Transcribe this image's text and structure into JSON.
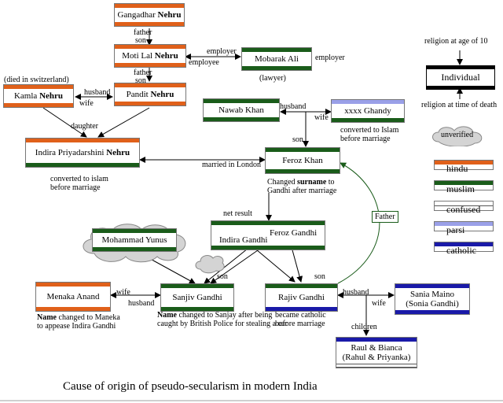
{
  "nodes": {
    "gangadhar": {
      "pre": "Gangadhar ",
      "strong": "Nehru",
      "top": "hindu",
      "bottom": "hindu"
    },
    "motilal": {
      "pre": "Moti Lal ",
      "strong": "Nehru",
      "top": "hindu",
      "bottom": "hindu"
    },
    "mobarak": {
      "pre": "Mobarak Ali",
      "strong": "",
      "top": "muslim",
      "bottom": "muslim"
    },
    "kamla": {
      "pre": "Kamla ",
      "strong": "Nehru",
      "top": "hindu",
      "bottom": "hindu"
    },
    "pandit": {
      "pre": "Pandit ",
      "strong": "Nehru",
      "top": "hindu",
      "bottom": "hindu"
    },
    "indira_p": {
      "pre": "Indira Priyadarshini ",
      "strong": "Nehru",
      "top": "hindu",
      "bottom": "muslim"
    },
    "nawab": {
      "pre": "Nawab Khan",
      "strong": "",
      "top": "muslim",
      "bottom": "muslim"
    },
    "ghandy": {
      "pre": "xxxx Ghandy",
      "strong": "",
      "top": "parsi",
      "bottom": "muslim"
    },
    "feroz": {
      "pre": "Feroz Khan",
      "strong": "",
      "top": "muslim",
      "bottom": "muslim"
    },
    "yunus": {
      "pre": "Mohammad Yunus",
      "strong": "",
      "top": "muslim",
      "bottom": "muslim"
    },
    "menaka": {
      "pre": "Menaka Anand",
      "strong": "",
      "top": "hindu",
      "bottom": "hindu"
    },
    "sanjiv": {
      "pre": "Sanjiv Gandhi",
      "strong": "",
      "top": "muslim",
      "bottom": "muslim"
    },
    "rajiv": {
      "pre": "Rajiv Gandhi",
      "strong": "",
      "top": "muslim",
      "bottom": "catholic"
    },
    "sania": {
      "pre": "Sania Maino",
      "line2": "(Sonia Gandhi)",
      "strong": "",
      "top": "catholic",
      "bottom": "catholic"
    },
    "raul": {
      "pre": "Raul & Bianca",
      "line2": "(Rahul & Priyanka)",
      "strong": "",
      "top": "catholic",
      "bottom": "confused"
    },
    "netresult": {
      "top": "muslim",
      "bottom": "muslim",
      "indira": "Indira Gandhi",
      "feroz": "Feroz Gandhi"
    }
  },
  "labels": {
    "father1": "father",
    "son1": "son",
    "employer1": "employer",
    "employee1": "employee",
    "employer2": "employer",
    "lawyer": "(lawyer)",
    "father2": "father",
    "son2": "son",
    "died": "(died in switzerland)",
    "husband1": "husband",
    "wife1": "wife",
    "daughter": "daughter",
    "husband2": "husband",
    "wife2": "wife",
    "converted_ghandy_1": "converted to Islam",
    "converted_ghandy_2": "before marriage",
    "son3": "son",
    "married": "married in London",
    "converted_indira_1": "converted to islam",
    "converted_indira_2": "before marriage",
    "changed_pre": "Changed ",
    "changed_strong": "surname",
    "changed_post": " to",
    "changed_2": "Gandhi after marriage",
    "net_result": "net result",
    "father3": "Father",
    "son4": "son",
    "son5": "son",
    "wife3": "wife",
    "husband3": "husband",
    "husband4": "husband",
    "wife4": "wife",
    "children": "children",
    "name_pre": "Name",
    "name_menaka_1": " changed to Maneka",
    "name_menaka_2": "to appease Indira Gandhi",
    "name_sanjiv_1": " changed to Sanjay after being",
    "name_sanjiv_2": "caught by British Police for stealing a car",
    "catholic_1": "became catholic",
    "catholic_2": "before marriage"
  },
  "legend": {
    "age10": "religion at age of 10",
    "individual": "Individual",
    "death": "religion at time of death",
    "unverified": "unverified",
    "items": [
      {
        "label": "hindu",
        "color": "#e0601a"
      },
      {
        "label": "muslim",
        "color": "#1a5c1a"
      },
      {
        "label": "confused",
        "color": "#ffffff"
      },
      {
        "label": "parsi",
        "color": "#9aa0e8"
      },
      {
        "label": "catholic",
        "color": "#1a1aa8"
      }
    ]
  },
  "caption": "Cause of origin of pseudo-secularism in modern India"
}
